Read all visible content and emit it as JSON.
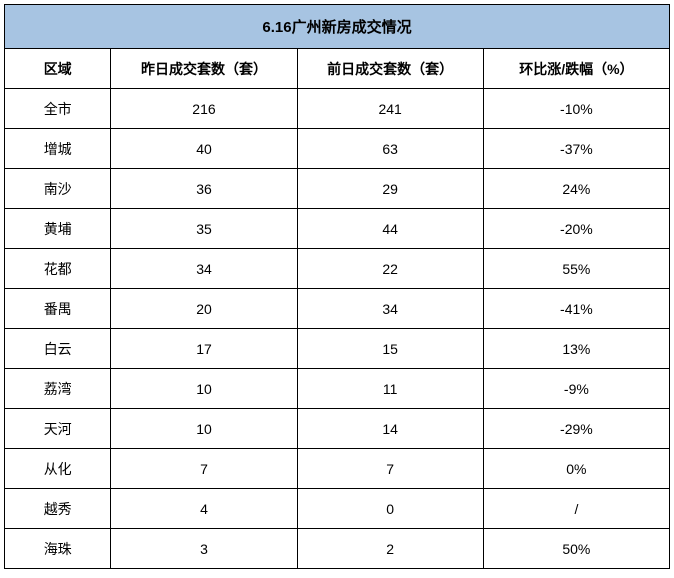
{
  "table": {
    "title": "6.16广州新房成交情况",
    "columns": [
      "区域",
      "昨日成交套数（套）",
      "前日成交套数（套）",
      "环比涨/跌幅（%）"
    ],
    "rows": [
      [
        "全市",
        "216",
        "241",
        "-10%"
      ],
      [
        "增城",
        "40",
        "63",
        "-37%"
      ],
      [
        "南沙",
        "36",
        "29",
        "24%"
      ],
      [
        "黄埔",
        "35",
        "44",
        "-20%"
      ],
      [
        "花都",
        "34",
        "22",
        "55%"
      ],
      [
        "番禺",
        "20",
        "34",
        "-41%"
      ],
      [
        "白云",
        "17",
        "15",
        "13%"
      ],
      [
        "荔湾",
        "10",
        "11",
        "-9%"
      ],
      [
        "天河",
        "10",
        "14",
        "-29%"
      ],
      [
        "从化",
        "7",
        "7",
        "0%"
      ],
      [
        "越秀",
        "4",
        "0",
        "/"
      ],
      [
        "海珠",
        "3",
        "2",
        "50%"
      ]
    ],
    "colors": {
      "title_bg": "#a7c4e2",
      "border": "#000000",
      "text": "#000000",
      "body_bg": "#ffffff"
    },
    "font_size_title": 15,
    "font_size_cells": 14
  }
}
